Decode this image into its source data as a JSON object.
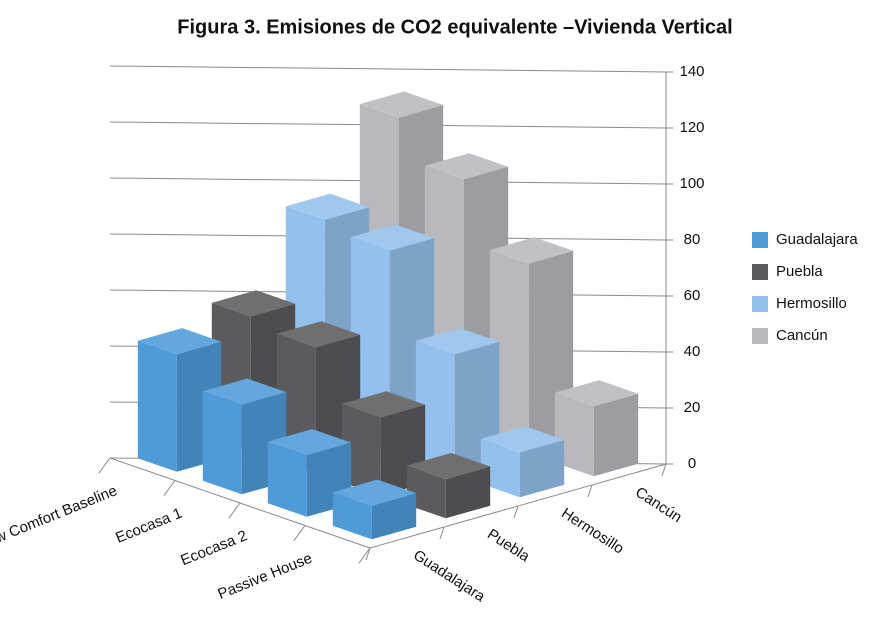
{
  "chart_data": {
    "type": "bar3d",
    "title": "Figura 3. Emisiones de CO2 equivalente –Vivienda Vertical",
    "categories": [
      "Low Comfort Baseline",
      "Ecocasa 1",
      "Ecocasa 2",
      "Passive House"
    ],
    "series": [
      {
        "name": "Guadalajara",
        "color": "#4f9bd9",
        "values": [
          42,
          32,
          22,
          12
        ]
      },
      {
        "name": "Puebla",
        "color": "#5b5b5d",
        "values": [
          48,
          45,
          28,
          14
        ]
      },
      {
        "name": "Hermosillo",
        "color": "#93c0ec",
        "values": [
          75,
          72,
          43,
          16
        ]
      },
      {
        "name": "Cancún",
        "color": "#b9b9bd",
        "values": [
          104,
          90,
          68,
          25
        ]
      }
    ],
    "ylim": [
      0,
      140
    ],
    "yticks": [
      0,
      20,
      40,
      60,
      80,
      100,
      120,
      140
    ],
    "grid": true,
    "legend": "right"
  }
}
